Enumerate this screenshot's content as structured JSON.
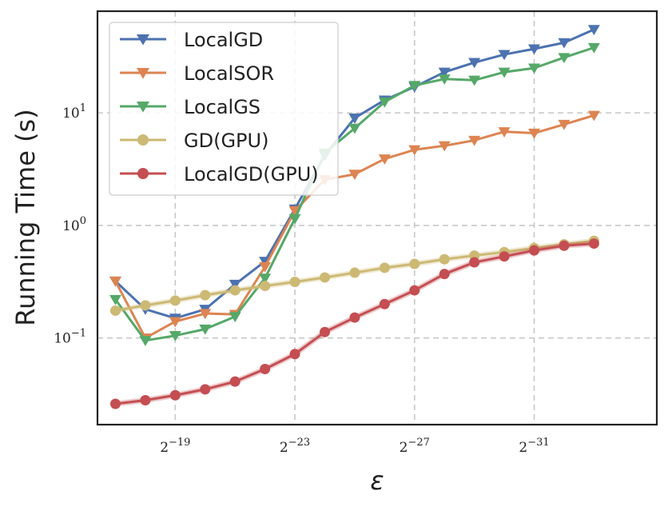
{
  "chart_data": {
    "type": "line",
    "title": "",
    "xlabel": "ε",
    "ylabel": "Running Time (s)",
    "yscale": "log",
    "ylim": [
      0.017,
      80
    ],
    "xlim": [
      -16.4,
      -35.1
    ],
    "x": [
      -17,
      -18,
      -19,
      -20,
      -21,
      -22,
      -23,
      -24,
      -25,
      -26,
      -27,
      -28,
      -29,
      -30,
      -31,
      -32,
      -33
    ],
    "x_ticks": [
      {
        "value": -19,
        "base": "2",
        "exp": "−19"
      },
      {
        "value": -23,
        "base": "2",
        "exp": "−23"
      },
      {
        "value": -27,
        "base": "2",
        "exp": "−27"
      },
      {
        "value": -31,
        "base": "2",
        "exp": "−31"
      }
    ],
    "y_ticks": [
      {
        "value": 0.1,
        "base": "10",
        "exp": "−1"
      },
      {
        "value": 1,
        "base": "10",
        "exp": "0"
      },
      {
        "value": 10,
        "base": "10",
        "exp": "1"
      }
    ],
    "grid": true,
    "legend_position": "top-left",
    "series": [
      {
        "name": "LocalGD",
        "color": "#4c72b0",
        "marker": "triangle-down",
        "values": [
          0.32,
          0.18,
          0.15,
          0.18,
          0.3,
          0.48,
          1.4,
          4.2,
          9.0,
          13.0,
          17.0,
          23.0,
          28.0,
          33.0,
          37.0,
          42.0,
          55.0
        ]
      },
      {
        "name": "LocalSOR",
        "color": "#dd8452",
        "marker": "triangle-down",
        "values": [
          0.32,
          0.1,
          0.14,
          0.165,
          0.162,
          0.43,
          1.35,
          2.55,
          2.85,
          3.9,
          4.7,
          5.1,
          5.7,
          6.8,
          6.6,
          7.9,
          9.5
        ]
      },
      {
        "name": "LocalGS",
        "color": "#55a868",
        "marker": "triangle-down",
        "values": [
          0.22,
          0.095,
          0.105,
          0.12,
          0.155,
          0.34,
          1.15,
          4.4,
          7.3,
          12.5,
          17.5,
          20.0,
          19.5,
          23.0,
          25.0,
          31.0,
          38.0
        ]
      },
      {
        "name": "GD(GPU)",
        "color": "#ccb974",
        "marker": "circle",
        "values": [
          0.175,
          0.195,
          0.215,
          0.24,
          0.265,
          0.29,
          0.315,
          0.345,
          0.38,
          0.42,
          0.455,
          0.5,
          0.54,
          0.58,
          0.63,
          0.68,
          0.73
        ]
      },
      {
        "name": "LocalGD(GPU)",
        "color": "#c44e52",
        "marker": "circle",
        "values": [
          0.026,
          0.028,
          0.031,
          0.035,
          0.041,
          0.053,
          0.072,
          0.113,
          0.152,
          0.2,
          0.265,
          0.37,
          0.47,
          0.53,
          0.6,
          0.66,
          0.69
        ]
      }
    ]
  }
}
